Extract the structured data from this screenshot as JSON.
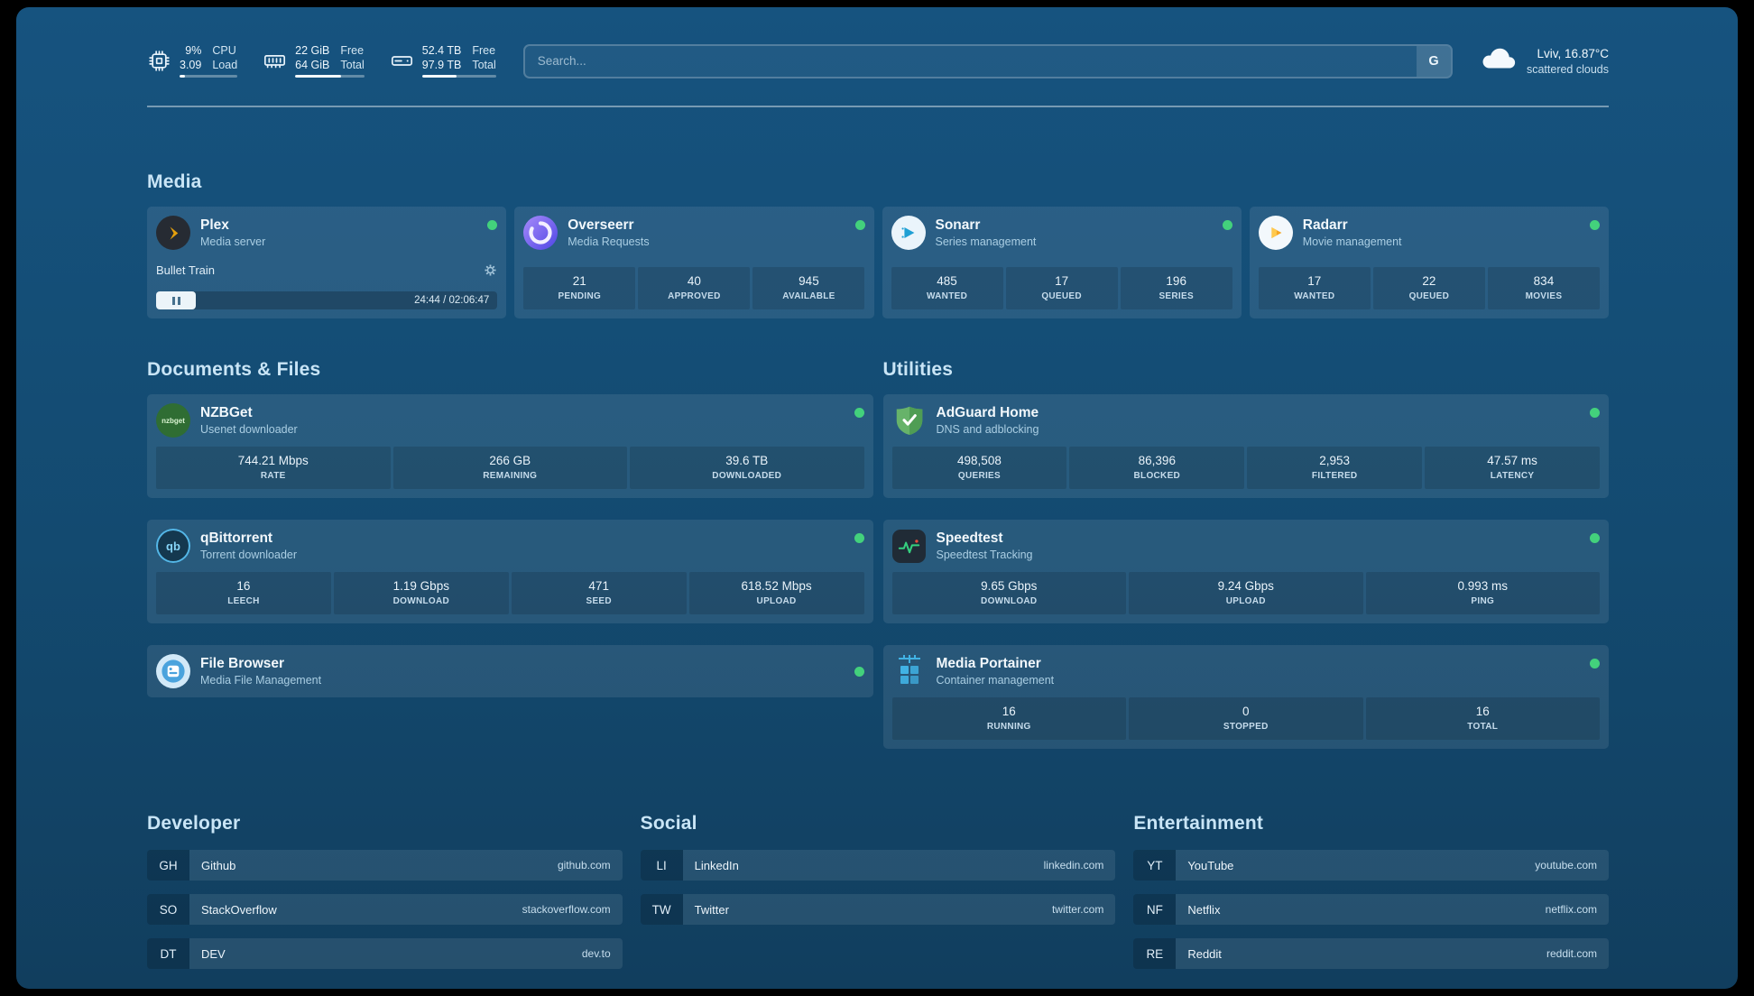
{
  "colors": {
    "status_online": "#43d17c",
    "plex_amber": "#e5a00d"
  },
  "infobar": {
    "widgets": [
      {
        "id": "cpu",
        "icon": "cpu-icon",
        "values": [
          "9%",
          "3.09"
        ],
        "labels": [
          "CPU",
          "Load"
        ],
        "progress_percent": 9
      },
      {
        "id": "memory",
        "icon": "memory-icon",
        "values": [
          "22 GiB",
          "64 GiB"
        ],
        "labels": [
          "Free",
          "Total"
        ],
        "progress_percent": 66
      },
      {
        "id": "disk",
        "icon": "disk-icon",
        "values": [
          "52.4 TB",
          "97.9 TB"
        ],
        "labels": [
          "Free",
          "Total"
        ],
        "progress_percent": 47
      }
    ],
    "search": {
      "placeholder": "Search...",
      "provider_button": "G"
    },
    "weather": {
      "icon": "cloud-icon",
      "location": "Lviv, 16.87°C",
      "condition": "scattered clouds"
    }
  },
  "service_groups": [
    {
      "title": "Media",
      "services": [
        {
          "name": "Plex",
          "subtitle": "Media server",
          "icon": "plex-icon",
          "online": true,
          "player": {
            "title": "Bullet Train",
            "time": "24:44 / 02:06:47",
            "progress_percent": 19
          }
        },
        {
          "name": "Overseerr",
          "subtitle": "Media Requests",
          "icon": "overseerr-icon",
          "online": true,
          "stats": [
            {
              "value": "21",
              "label": "PENDING"
            },
            {
              "value": "40",
              "label": "APPROVED"
            },
            {
              "value": "945",
              "label": "AVAILABLE"
            }
          ]
        },
        {
          "name": "Sonarr",
          "subtitle": "Series management",
          "icon": "sonarr-icon",
          "online": true,
          "stats": [
            {
              "value": "485",
              "label": "WANTED"
            },
            {
              "value": "17",
              "label": "QUEUED"
            },
            {
              "value": "196",
              "label": "SERIES"
            }
          ]
        },
        {
          "name": "Radarr",
          "subtitle": "Movie management",
          "icon": "radarr-icon",
          "online": true,
          "stats": [
            {
              "value": "17",
              "label": "WANTED"
            },
            {
              "value": "22",
              "label": "QUEUED"
            },
            {
              "value": "834",
              "label": "MOVIES"
            }
          ]
        }
      ]
    },
    {
      "title": "Documents & Files",
      "services": [
        {
          "name": "NZBGet",
          "subtitle": "Usenet downloader",
          "icon": "nzbget-icon",
          "online": true,
          "stats": [
            {
              "value": "744.21 Mbps",
              "label": "RATE"
            },
            {
              "value": "266 GB",
              "label": "REMAINING"
            },
            {
              "value": "39.6 TB",
              "label": "DOWNLOADED"
            }
          ]
        },
        {
          "name": "qBittorrent",
          "subtitle": "Torrent downloader",
          "icon": "qbittorrent-icon",
          "online": true,
          "stats": [
            {
              "value": "16",
              "label": "LEECH"
            },
            {
              "value": "1.19 Gbps",
              "label": "DOWNLOAD"
            },
            {
              "value": "471",
              "label": "SEED"
            },
            {
              "value": "618.52 Mbps",
              "label": "UPLOAD"
            }
          ]
        },
        {
          "name": "File Browser",
          "subtitle": "Media File Management",
          "icon": "filebrowser-icon",
          "online": true
        }
      ]
    },
    {
      "title": "Utilities",
      "services": [
        {
          "name": "AdGuard Home",
          "subtitle": "DNS and adblocking",
          "icon": "adguard-icon",
          "online": true,
          "stats": [
            {
              "value": "498,508",
              "label": "QUERIES"
            },
            {
              "value": "86,396",
              "label": "BLOCKED"
            },
            {
              "value": "2,953",
              "label": "FILTERED"
            },
            {
              "value": "47.57 ms",
              "label": "LATENCY"
            }
          ]
        },
        {
          "name": "Speedtest",
          "subtitle": "Speedtest Tracking",
          "icon": "speedtest-icon",
          "online": true,
          "stats": [
            {
              "value": "9.65 Gbps",
              "label": "DOWNLOAD"
            },
            {
              "value": "9.24 Gbps",
              "label": "UPLOAD"
            },
            {
              "value": "0.993 ms",
              "label": "PING"
            }
          ]
        },
        {
          "name": "Media Portainer",
          "subtitle": "Container management",
          "icon": "portainer-icon",
          "online": true,
          "stats": [
            {
              "value": "16",
              "label": "RUNNING"
            },
            {
              "value": "0",
              "label": "STOPPED"
            },
            {
              "value": "16",
              "label": "TOTAL"
            }
          ]
        }
      ]
    }
  ],
  "bookmark_groups": [
    {
      "title": "Developer",
      "items": [
        {
          "abbr": "GH",
          "name": "Github",
          "domain": "github.com"
        },
        {
          "abbr": "SO",
          "name": "StackOverflow",
          "domain": "stackoverflow.com"
        },
        {
          "abbr": "DT",
          "name": "DEV",
          "domain": "dev.to"
        }
      ]
    },
    {
      "title": "Social",
      "items": [
        {
          "abbr": "LI",
          "name": "LinkedIn",
          "domain": "linkedin.com"
        },
        {
          "abbr": "TW",
          "name": "Twitter",
          "domain": "twitter.com"
        }
      ]
    },
    {
      "title": "Entertainment",
      "items": [
        {
          "abbr": "YT",
          "name": "YouTube",
          "domain": "youtube.com"
        },
        {
          "abbr": "NF",
          "name": "Netflix",
          "domain": "netflix.com"
        },
        {
          "abbr": "RE",
          "name": "Reddit",
          "domain": "reddit.com"
        }
      ]
    }
  ]
}
